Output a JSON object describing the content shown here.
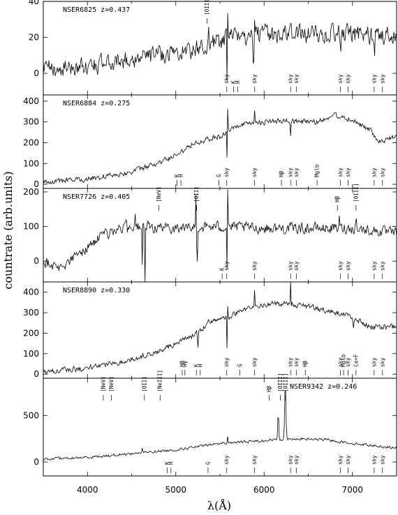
{
  "chart_data": {
    "type": "line",
    "xlabel": "λ(Å)",
    "ylabel": "countrate (arb.units)",
    "xlim": [
      3500,
      7500
    ],
    "xticks": [
      4000,
      5000,
      6000,
      7000
    ],
    "panels": [
      {
        "name": "NSER6825",
        "title": "NSER6825  z=0.437",
        "ylim": [
          -12,
          40
        ],
        "yticks": [
          0,
          20,
          40
        ],
        "profile": [
          [
            3500,
            2
          ],
          [
            4000,
            4
          ],
          [
            4500,
            8
          ],
          [
            5000,
            12
          ],
          [
            5300,
            14
          ],
          [
            5600,
            20
          ],
          [
            6000,
            22
          ],
          [
            6500,
            22
          ],
          [
            7000,
            22
          ],
          [
            7500,
            21
          ]
        ],
        "noise": 4.5,
        "peaks": [
          [
            5370,
            10,
            10
          ],
          [
            5590,
            20,
            4
          ],
          [
            5890,
            18,
            4
          ]
        ],
        "dips": [
          [
            5580,
            30,
            4
          ],
          [
            5880,
            28,
            4
          ],
          [
            6870,
            10,
            6
          ],
          [
            7250,
            15,
            6
          ]
        ],
        "lines": [
          {
            "label": "[OII]",
            "x": 5355,
            "pos": "top"
          },
          {
            "label": "sky",
            "x": 5577,
            "pos": "bottom"
          },
          {
            "label": "K",
            "x": 5653,
            "pos": "bottom"
          },
          {
            "label": "H",
            "x": 5700,
            "pos": "bottom"
          },
          {
            "label": "sky",
            "x": 5893,
            "pos": "bottom"
          },
          {
            "label": "sky",
            "x": 6300,
            "pos": "bottom"
          },
          {
            "label": "sky",
            "x": 6364,
            "pos": "bottom"
          },
          {
            "label": "sky",
            "x": 6863,
            "pos": "bottom"
          },
          {
            "label": "sky",
            "x": 6950,
            "pos": "bottom"
          },
          {
            "label": "sky",
            "x": 7246,
            "pos": "bottom"
          },
          {
            "label": "sky",
            "x": 7340,
            "pos": "bottom"
          }
        ]
      },
      {
        "name": "NSER6884",
        "title": "NSER6884  z=0.275",
        "ylim": [
          -20,
          430
        ],
        "yticks": [
          0,
          100,
          200,
          300,
          400
        ],
        "profile": [
          [
            3500,
            10
          ],
          [
            4000,
            25
          ],
          [
            4500,
            60
          ],
          [
            4800,
            100
          ],
          [
            5000,
            140
          ],
          [
            5200,
            200
          ],
          [
            5500,
            230
          ],
          [
            5700,
            280
          ],
          [
            6000,
            300
          ],
          [
            6300,
            305
          ],
          [
            6600,
            300
          ],
          [
            6800,
            335
          ],
          [
            7000,
            310
          ],
          [
            7200,
            260
          ],
          [
            7300,
            200
          ],
          [
            7500,
            230
          ]
        ],
        "noise": 12,
        "peaks": [
          [
            5590,
            150,
            4
          ],
          [
            5890,
            80,
            4
          ]
        ],
        "dips": [
          [
            5580,
            120,
            4
          ],
          [
            6300,
            60,
            4
          ]
        ],
        "lines": [
          {
            "label": "K",
            "x": 5015,
            "pos": "bottom"
          },
          {
            "label": "H",
            "x": 5058,
            "pos": "bottom"
          },
          {
            "label": "G",
            "x": 5487,
            "pos": "bottom"
          },
          {
            "label": "sky",
            "x": 5577,
            "pos": "bottom"
          },
          {
            "label": "sky",
            "x": 5893,
            "pos": "bottom"
          },
          {
            "label": "Hβ",
            "x": 6196,
            "pos": "bottom"
          },
          {
            "label": "sky",
            "x": 6300,
            "pos": "bottom"
          },
          {
            "label": "sky",
            "x": 6364,
            "pos": "bottom"
          },
          {
            "label": "Mglb",
            "x": 6600,
            "pos": "bottom"
          },
          {
            "label": "sky",
            "x": 6863,
            "pos": "bottom"
          },
          {
            "label": "sky",
            "x": 6950,
            "pos": "bottom"
          },
          {
            "label": "sky",
            "x": 7246,
            "pos": "bottom"
          },
          {
            "label": "sky",
            "x": 7340,
            "pos": "bottom"
          }
        ]
      },
      {
        "name": "NSER7726",
        "title": "NSER7726  z=0.405",
        "ylim": [
          -60,
          210
        ],
        "yticks": [
          0,
          100,
          200
        ],
        "profile": [
          [
            3500,
            0
          ],
          [
            3700,
            -20
          ],
          [
            3900,
            20
          ],
          [
            4100,
            60
          ],
          [
            4300,
            90
          ],
          [
            4500,
            100
          ],
          [
            5000,
            95
          ],
          [
            5500,
            100
          ],
          [
            6000,
            95
          ],
          [
            6500,
            95
          ],
          [
            7000,
            95
          ],
          [
            7500,
            80
          ]
        ],
        "noise": 14,
        "peaks": [
          [
            5230,
            110,
            6
          ],
          [
            5590,
            150,
            4
          ],
          [
            6850,
            30,
            6
          ],
          [
            7040,
            40,
            6
          ],
          [
            4440,
            40,
            6
          ],
          [
            4540,
            40,
            6
          ]
        ],
        "dips": [
          [
            5240,
            140,
            6
          ],
          [
            4650,
            200,
            4
          ],
          [
            4620,
            120,
            4
          ],
          [
            5580,
            110,
            4
          ]
        ],
        "lines": [
          {
            "label": "[NeV]",
            "x": 4810,
            "pos": "top"
          },
          {
            "label": "[OII]",
            "x": 5236,
            "pos": "top"
          },
          {
            "label": "K",
            "x": 5525,
            "pos": "bottom"
          },
          {
            "label": "sky",
            "x": 5577,
            "pos": "bottom"
          },
          {
            "label": "sky",
            "x": 5893,
            "pos": "bottom"
          },
          {
            "label": "sky",
            "x": 6300,
            "pos": "bottom"
          },
          {
            "label": "sky",
            "x": 6364,
            "pos": "bottom"
          },
          {
            "label": "Hβ",
            "x": 6830,
            "pos": "top"
          },
          {
            "label": "[OIII]",
            "x": 7040,
            "pos": "top"
          },
          {
            "label": "sky",
            "x": 6863,
            "pos": "bottom"
          },
          {
            "label": "sky",
            "x": 6950,
            "pos": "bottom"
          },
          {
            "label": "sky",
            "x": 7246,
            "pos": "bottom"
          },
          {
            "label": "sky",
            "x": 7340,
            "pos": "bottom"
          }
        ]
      },
      {
        "name": "NSER8890",
        "title": "NSER8890  z=0.330",
        "ylim": [
          -20,
          450
        ],
        "yticks": [
          0,
          100,
          200,
          300,
          400
        ],
        "profile": [
          [
            3500,
            10
          ],
          [
            4000,
            30
          ],
          [
            4500,
            70
          ],
          [
            4800,
            110
          ],
          [
            5000,
            150
          ],
          [
            5200,
            190
          ],
          [
            5400,
            260
          ],
          [
            5600,
            280
          ],
          [
            5800,
            320
          ],
          [
            6000,
            340
          ],
          [
            6300,
            345
          ],
          [
            6600,
            320
          ],
          [
            6800,
            300
          ],
          [
            7000,
            280
          ],
          [
            7200,
            230
          ],
          [
            7500,
            230
          ]
        ],
        "noise": 12,
        "peaks": [
          [
            5890,
            90,
            4
          ],
          [
            6300,
            110,
            4
          ],
          [
            5590,
            60,
            4
          ]
        ],
        "dips": [
          [
            5580,
            160,
            4
          ],
          [
            5250,
            80,
            6
          ],
          [
            7010,
            60,
            8
          ]
        ],
        "lines": [
          {
            "label": "Hβ",
            "x": 5073,
            "pos": "bottom"
          },
          {
            "label": "Hγ",
            "x": 5103,
            "pos": "bottom"
          },
          {
            "label": "K",
            "x": 5233,
            "pos": "bottom"
          },
          {
            "label": "H",
            "x": 5277,
            "pos": "bottom"
          },
          {
            "label": "sky",
            "x": 5577,
            "pos": "bottom"
          },
          {
            "label": "G",
            "x": 5726,
            "pos": "bottom"
          },
          {
            "label": "sky",
            "x": 5893,
            "pos": "bottom"
          },
          {
            "label": "sky",
            "x": 6300,
            "pos": "bottom"
          },
          {
            "label": "sky",
            "x": 6364,
            "pos": "bottom"
          },
          {
            "label": "Hβ",
            "x": 6466,
            "pos": "bottom"
          },
          {
            "label": "sky",
            "x": 6863,
            "pos": "bottom"
          },
          {
            "label": "Mglb",
            "x": 6900,
            "pos": "bottom"
          },
          {
            "label": "sky",
            "x": 6950,
            "pos": "bottom"
          },
          {
            "label": "Ca+F",
            "x": 7040,
            "pos": "bottom"
          },
          {
            "label": "sky",
            "x": 7246,
            "pos": "bottom"
          },
          {
            "label": "sky",
            "x": 7340,
            "pos": "bottom"
          }
        ]
      },
      {
        "name": "NSER9342",
        "title": "NSER9342  z=0.246",
        "ylim": [
          -150,
          900
        ],
        "yticks": [
          0,
          500
        ],
        "profile": [
          [
            3500,
            30
          ],
          [
            4000,
            50
          ],
          [
            4500,
            90
          ],
          [
            5000,
            130
          ],
          [
            5500,
            200
          ],
          [
            6000,
            230
          ],
          [
            6300,
            250
          ],
          [
            6700,
            240
          ],
          [
            7000,
            200
          ],
          [
            7500,
            150
          ]
        ],
        "noise": 12,
        "peaks": [
          [
            6160,
            300,
            8
          ],
          [
            6240,
            600,
            10
          ],
          [
            4620,
            50,
            6
          ],
          [
            5590,
            80,
            4
          ]
        ],
        "dips": [],
        "lines": [
          {
            "label": "[NeV]",
            "x": 4180,
            "pos": "top"
          },
          {
            "label": "[NeV]",
            "x": 4270,
            "pos": "top"
          },
          {
            "label": "[OII]",
            "x": 4645,
            "pos": "top"
          },
          {
            "label": "[NeIII]",
            "x": 4822,
            "pos": "top"
          },
          {
            "label": "Hβ",
            "x": 6058,
            "pos": "top"
          },
          {
            "label": "[OIII]",
            "x": 6183,
            "pos": "top"
          },
          {
            "label": "[OIII]",
            "x": 6243,
            "pos": "top"
          },
          {
            "label": "K",
            "x": 4902,
            "pos": "bottom"
          },
          {
            "label": "H",
            "x": 4945,
            "pos": "bottom"
          },
          {
            "label": "G",
            "x": 5365,
            "pos": "bottom"
          },
          {
            "label": "sky",
            "x": 5577,
            "pos": "bottom"
          },
          {
            "label": "sky",
            "x": 5893,
            "pos": "bottom"
          },
          {
            "label": "sky",
            "x": 6300,
            "pos": "bottom"
          },
          {
            "label": "sky",
            "x": 6364,
            "pos": "bottom"
          },
          {
            "label": "sky",
            "x": 6863,
            "pos": "bottom"
          },
          {
            "label": "sky",
            "x": 6950,
            "pos": "bottom"
          },
          {
            "label": "sky",
            "x": 7246,
            "pos": "bottom"
          },
          {
            "label": "sky",
            "x": 7340,
            "pos": "bottom"
          }
        ]
      }
    ]
  }
}
